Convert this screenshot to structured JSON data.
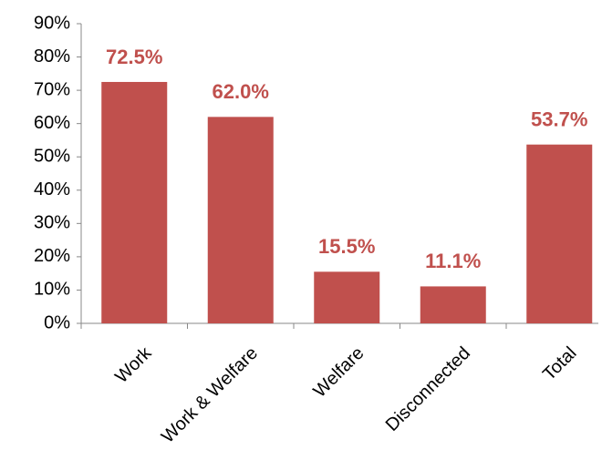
{
  "chart_data": {
    "type": "bar",
    "categories": [
      "Work",
      "Work & Welfare",
      "Welfare",
      "Disconnected",
      "Total"
    ],
    "values": [
      72.5,
      62.0,
      15.5,
      11.1,
      53.7
    ],
    "value_labels": [
      "72.5%",
      "62.0%",
      "15.5%",
      "11.1%",
      "53.7%"
    ],
    "color": "#c0504d",
    "ylim": [
      0,
      90
    ],
    "yticks": [
      {
        "value": 0,
        "label": "0%"
      },
      {
        "value": 10,
        "label": "10%"
      },
      {
        "value": 20,
        "label": "20%"
      },
      {
        "value": 30,
        "label": "30%"
      },
      {
        "value": 40,
        "label": "40%"
      },
      {
        "value": 50,
        "label": "50%"
      },
      {
        "value": 60,
        "label": "60%"
      },
      {
        "value": 70,
        "label": "70%"
      },
      {
        "value": 80,
        "label": "80%"
      },
      {
        "value": 90,
        "label": "90%"
      }
    ],
    "grid": false
  }
}
